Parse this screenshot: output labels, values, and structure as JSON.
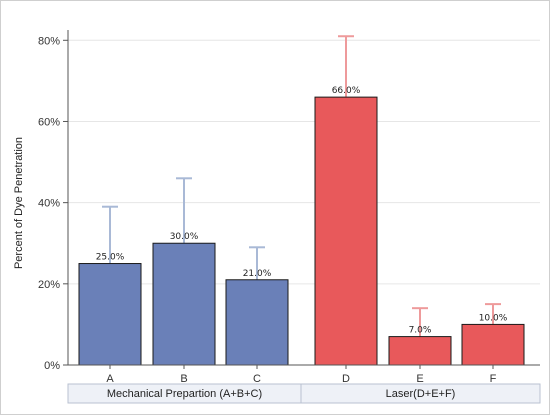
{
  "chart_data": {
    "type": "bar",
    "title": "",
    "xlabel": "",
    "ylabel": "Percent of Dye Penetration",
    "ylim": [
      0,
      85
    ],
    "yticks": [
      0,
      20,
      40,
      60,
      80
    ],
    "ytick_labels": [
      "0%",
      "20%",
      "40%",
      "60%",
      "80%"
    ],
    "grid": "horizontal",
    "categories": [
      "A",
      "B",
      "C",
      "D",
      "E",
      "F"
    ],
    "values": [
      25.0,
      30.0,
      21.0,
      66.0,
      7.0,
      10.0
    ],
    "error_upper": [
      39,
      46,
      29,
      81,
      14,
      15
    ],
    "data_labels": [
      "25.0%",
      "30.0%",
      "21.0%",
      "66.0%",
      "7.0%",
      "10.0%"
    ],
    "groups": [
      {
        "label": "Mechanical Prepartion (A+B+C)",
        "categories": [
          "A",
          "B",
          "C"
        ],
        "color": "#6a80b8",
        "error_color": "#a9b9d6"
      },
      {
        "label": "Laser(D+E+F)",
        "categories": [
          "D",
          "E",
          "F"
        ],
        "color": "#e8595b",
        "error_color": "#ee9a9b"
      }
    ]
  }
}
